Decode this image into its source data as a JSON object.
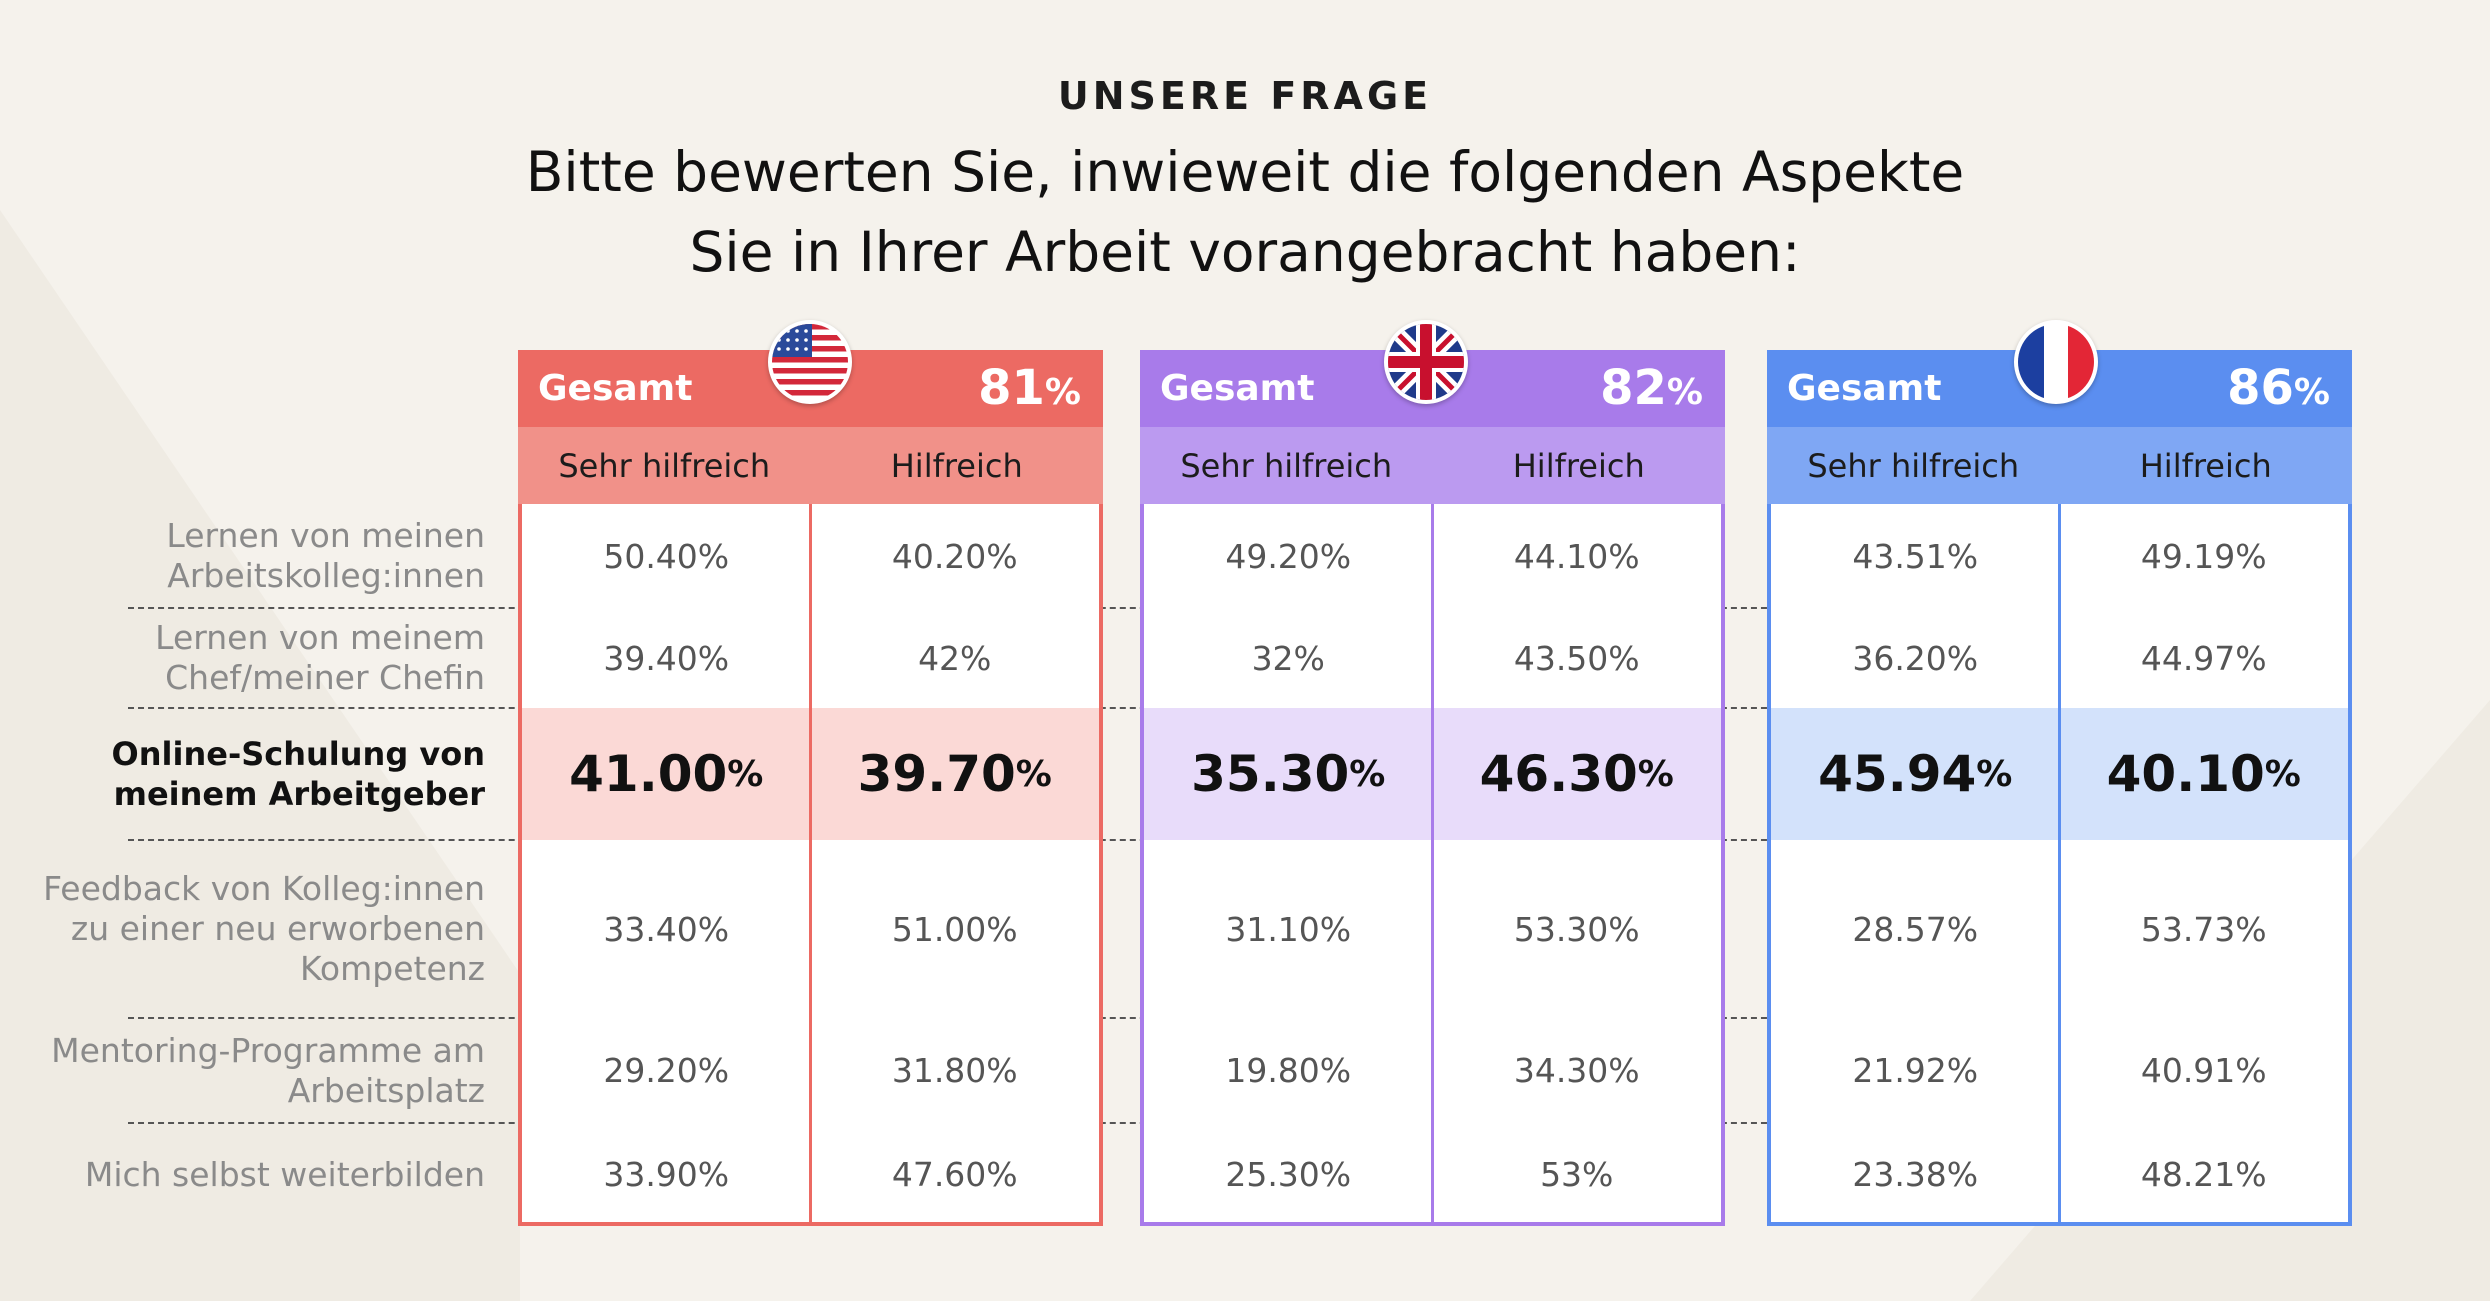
{
  "header": {
    "eyebrow": "UNSERE FRAGE",
    "title_line1": "Bitte bewerten Sie, inwieweit die folgenden Aspekte",
    "title_line2": "Sie in Ihrer Arbeit vorangebracht haben:"
  },
  "chart_data": {
    "type": "table",
    "title": "Bitte bewerten Sie, inwieweit die folgenden Aspekte Sie in Ihrer Arbeit vorangebracht haben:",
    "rows": [
      "Lernen von meinen Arbeitskolleg:innen",
      "Lernen von meinem Chef/meiner Chefin",
      "Online-Schulung von meinem Arbeitgeber",
      "Feedback von Kolleg:innen zu einer neu erworbenen Kompetenz",
      "Mentoring-Programme am Arbeitsplatz",
      "Mich selbst weiterbilden"
    ],
    "highlight_row": 2,
    "columns": [
      "Sehr hilfreich",
      "Hilfreich"
    ],
    "total_label": "Gesamt",
    "groups": [
      {
        "country": "USA",
        "flag": "us-flag",
        "total": "81",
        "color": "#ec6a63",
        "sub_color": "#f19189",
        "band_color": "#fbd9d6",
        "sehr_hilfreich": [
          "50.40%",
          "39.40%",
          "41.00",
          "33.40%",
          "29.20%",
          "33.90%"
        ],
        "hilfreich": [
          "40.20%",
          "42%",
          "39.70",
          "51.00%",
          "31.80%",
          "47.60%"
        ]
      },
      {
        "country": "UK",
        "flag": "uk-flag",
        "total": "82",
        "color": "#a87bea",
        "sub_color": "#bb9af0",
        "band_color": "#e8dcfa",
        "sehr_hilfreich": [
          "49.20%",
          "32%",
          "35.30",
          "31.10%",
          "19.80%",
          "25.30%"
        ],
        "hilfreich": [
          "44.10%",
          "43.50%",
          "46.30",
          "53.30%",
          "34.30%",
          "53%"
        ]
      },
      {
        "country": "Frankreich",
        "flag": "france-flag",
        "total": "86",
        "color": "#5b8ef0",
        "sub_color": "#7fa7f4",
        "band_color": "#d3e2fb",
        "sehr_hilfreich": [
          "43.51%",
          "36.20%",
          "45.94",
          "28.57%",
          "21.92%",
          "23.38%"
        ],
        "hilfreich": [
          "49.19%",
          "44.97%",
          "40.10",
          "53.73%",
          "40.91%",
          "48.21%"
        ]
      }
    ],
    "percent_sign": "%"
  }
}
